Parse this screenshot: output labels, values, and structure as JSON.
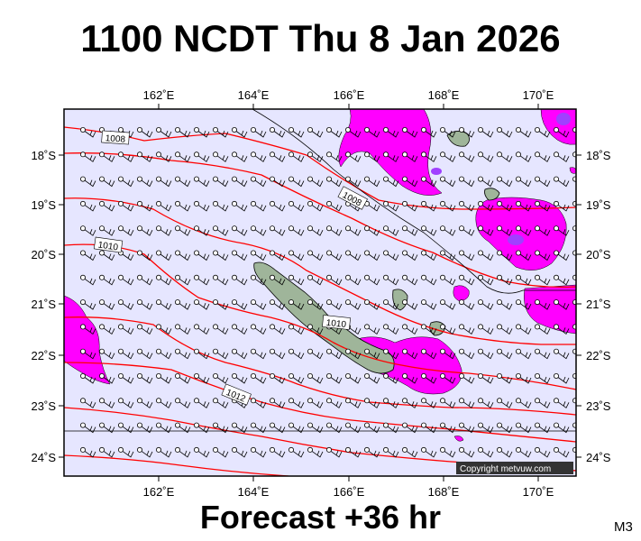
{
  "title": "1100 NCDT Thu 8 Jan 2026",
  "footer": "Forecast +36 hr",
  "map_code": "M3",
  "copyright": "Copyright metvuw.com",
  "colors": {
    "background": "#e6e6ff",
    "land": "#9fb59a",
    "rain": "#ff00ff",
    "rain_heavy": "#a040ff",
    "isobar_main": "#ff0000",
    "isobar_minor": "#000000"
  },
  "axes": {
    "lon_labels": [
      "162˚E",
      "164˚E",
      "166˚E",
      "168˚E",
      "170˚E"
    ],
    "lat_labels": [
      "18˚S",
      "19˚S",
      "20˚S",
      "21˚S",
      "22˚S",
      "23˚S",
      "24˚S"
    ]
  },
  "isobar_labels": [
    {
      "text": "1008"
    },
    {
      "text": "1008"
    },
    {
      "text": "1010"
    },
    {
      "text": "1010"
    },
    {
      "text": "1012"
    }
  ],
  "symbols": {
    "land_icon": "island-shape",
    "wind_icon": "wind-barb-icon"
  }
}
